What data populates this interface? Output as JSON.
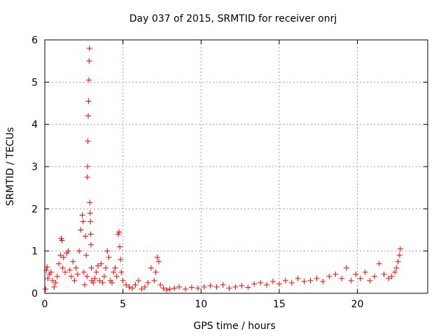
{
  "chart_data": {
    "type": "scatter",
    "title": "Day 037 of 2015, SRMTID for receiver onrj",
    "xlabel": "GPS time / hours",
    "ylabel": "SRMTID / TECUs",
    "xlim": [
      0,
      24.5
    ],
    "ylim": [
      0,
      6
    ],
    "x_ticks": [
      0,
      5,
      10,
      15,
      20
    ],
    "x_tick_labels": [
      "0",
      "5",
      "10",
      "15",
      "20"
    ],
    "y_ticks": [
      0,
      1,
      2,
      3,
      4,
      5,
      6
    ],
    "y_tick_labels": [
      "0",
      "1",
      "2",
      "3",
      "4",
      "5",
      "6"
    ],
    "grid": true,
    "marker": "+",
    "marker_color": "#ff0000",
    "series": [
      {
        "name": "SRMTID",
        "x": [
          0.05,
          0.1,
          0.15,
          0.2,
          0.3,
          0.4,
          0.5,
          0.6,
          0.7,
          0.8,
          0.9,
          1.0,
          1.05,
          1.1,
          1.15,
          1.2,
          1.3,
          1.4,
          1.5,
          1.6,
          1.7,
          1.8,
          1.9,
          2.0,
          2.1,
          2.2,
          2.3,
          2.4,
          2.45,
          2.5,
          2.55,
          2.6,
          2.65,
          2.7,
          2.72,
          2.74,
          2.76,
          2.78,
          2.8,
          2.82,
          2.84,
          2.86,
          2.88,
          2.9,
          2.92,
          2.94,
          2.96,
          2.98,
          3.0,
          3.1,
          3.2,
          3.3,
          3.4,
          3.5,
          3.6,
          3.7,
          3.8,
          3.9,
          4.0,
          4.1,
          4.2,
          4.3,
          4.4,
          4.5,
          4.6,
          4.7,
          4.75,
          4.8,
          4.85,
          4.9,
          5.0,
          5.2,
          5.4,
          5.6,
          5.8,
          6.0,
          6.2,
          6.4,
          6.6,
          6.8,
          7.0,
          7.1,
          7.2,
          7.3,
          7.4,
          7.6,
          7.8,
          8.0,
          8.3,
          8.6,
          9.0,
          9.4,
          9.8,
          10.2,
          10.6,
          11.0,
          11.4,
          11.8,
          12.2,
          12.6,
          13.0,
          13.4,
          13.8,
          14.2,
          14.6,
          15.0,
          15.4,
          15.8,
          16.2,
          16.6,
          17.0,
          17.4,
          17.8,
          18.2,
          18.6,
          19.0,
          19.3,
          19.6,
          19.9,
          20.2,
          20.5,
          20.8,
          21.1,
          21.4,
          21.7,
          22.0,
          22.2,
          22.4,
          22.5,
          22.6,
          22.7,
          22.75
        ],
        "y": [
          0.1,
          0.55,
          0.62,
          0.35,
          0.45,
          0.5,
          0.3,
          0.15,
          0.25,
          0.4,
          0.7,
          0.9,
          1.3,
          1.25,
          0.6,
          0.85,
          0.5,
          0.95,
          1.0,
          0.55,
          0.4,
          0.75,
          0.3,
          0.6,
          0.45,
          1.0,
          1.5,
          1.85,
          1.7,
          0.5,
          0.2,
          1.35,
          0.9,
          0.4,
          2.75,
          3.0,
          3.6,
          4.2,
          4.55,
          5.05,
          5.5,
          5.8,
          2.15,
          1.9,
          1.7,
          1.4,
          1.15,
          0.6,
          0.3,
          0.25,
          0.35,
          0.5,
          0.65,
          0.3,
          0.7,
          0.25,
          0.4,
          0.6,
          1.0,
          0.85,
          0.3,
          0.25,
          0.5,
          0.6,
          0.4,
          1.4,
          1.45,
          1.1,
          0.8,
          0.5,
          0.3,
          0.2,
          0.15,
          0.12,
          0.2,
          0.3,
          0.1,
          0.15,
          0.25,
          0.6,
          0.3,
          0.5,
          0.85,
          0.75,
          0.2,
          0.12,
          0.08,
          0.1,
          0.12,
          0.15,
          0.1,
          0.14,
          0.12,
          0.15,
          0.18,
          0.15,
          0.2,
          0.12,
          0.15,
          0.18,
          0.14,
          0.22,
          0.25,
          0.2,
          0.28,
          0.22,
          0.3,
          0.25,
          0.35,
          0.28,
          0.3,
          0.35,
          0.28,
          0.4,
          0.45,
          0.35,
          0.6,
          0.3,
          0.45,
          0.35,
          0.5,
          0.3,
          0.4,
          0.7,
          0.45,
          0.35,
          0.4,
          0.5,
          0.6,
          0.75,
          0.9,
          1.05
        ]
      }
    ]
  }
}
